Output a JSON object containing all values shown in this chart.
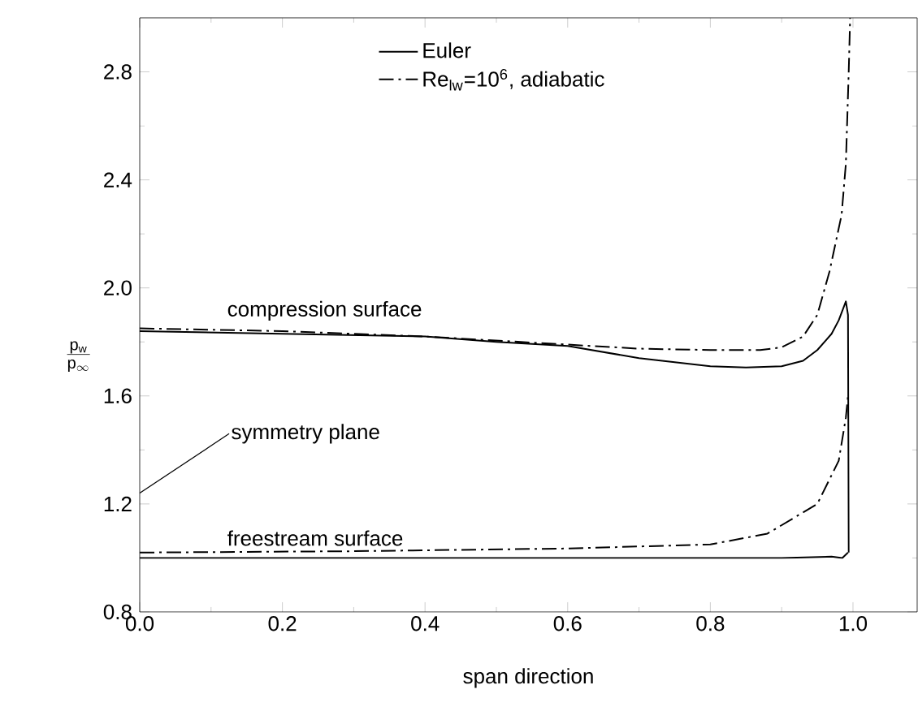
{
  "chart_data": {
    "type": "line",
    "xlabel": "span direction",
    "ylabel": "\\frac{\\mathsf{p}_{\\mathsf{w}}}{\\mathsf{p}_{\\infty}}",
    "xlim": [
      0,
      1.09
    ],
    "ylim": [
      0.8,
      3.0
    ],
    "xticks": [
      {
        "value": 0,
        "label": "0.0"
      },
      0.2,
      0.4,
      0.6,
      0.8,
      {
        "value": 1,
        "label": "1.0"
      }
    ],
    "yticks": [
      0.8,
      1.2,
      1.6,
      {
        "value": 2,
        "label": "2.0"
      },
      2.4,
      2.8
    ],
    "legend": "top",
    "series": [
      {
        "name": "Euler",
        "color": "#000000",
        "line_style": "solid",
        "x": [
          0,
          0.2,
          0.4,
          0.5,
          0.6,
          0.7,
          0.8,
          0.85,
          0.9,
          0.93,
          0.95,
          0.97,
          0.98,
          0.99,
          0.993,
          0.994
        ],
        "values": [
          1.84,
          1.83,
          1.82,
          1.8,
          1.785,
          1.74,
          1.71,
          1.705,
          1.71,
          1.73,
          1.77,
          1.83,
          1.88,
          1.95,
          1.9,
          1.02
        ]
      },
      {
        "name": "Re$_{lw}$=10$^{6}$, adiabatic",
        "color": "#000000",
        "line_style": "dashdot",
        "x": [
          0,
          0.2,
          0.4,
          0.6,
          0.7,
          0.8,
          0.87,
          0.9,
          0.93,
          0.95,
          0.967,
          0.984,
          0.99,
          0.994,
          0.996
        ],
        "values": [
          1.85,
          1.84,
          1.82,
          1.79,
          1.775,
          1.77,
          1.77,
          1.78,
          1.82,
          1.9,
          2.06,
          2.27,
          2.46,
          2.8,
          3.0
        ]
      },
      {
        "color": "#000000",
        "line_style": "solid",
        "x": [
          0,
          0.5,
          0.9,
          0.97,
          0.985,
          0.993
        ],
        "values": [
          1.0,
          1.0,
          1.0,
          1.005,
          1.0,
          1.02
        ]
      },
      {
        "color": "#000000",
        "line_style": "dashdot",
        "x": [
          0,
          0.3,
          0.6,
          0.8,
          0.88,
          0.95,
          0.98,
          0.99,
          0.993
        ],
        "values": [
          1.02,
          1.025,
          1.035,
          1.05,
          1.09,
          1.2,
          1.36,
          1.52,
          1.6
        ]
      }
    ],
    "annotations": [
      "compression surface",
      "symmetry plane",
      "freestream surface"
    ]
  }
}
